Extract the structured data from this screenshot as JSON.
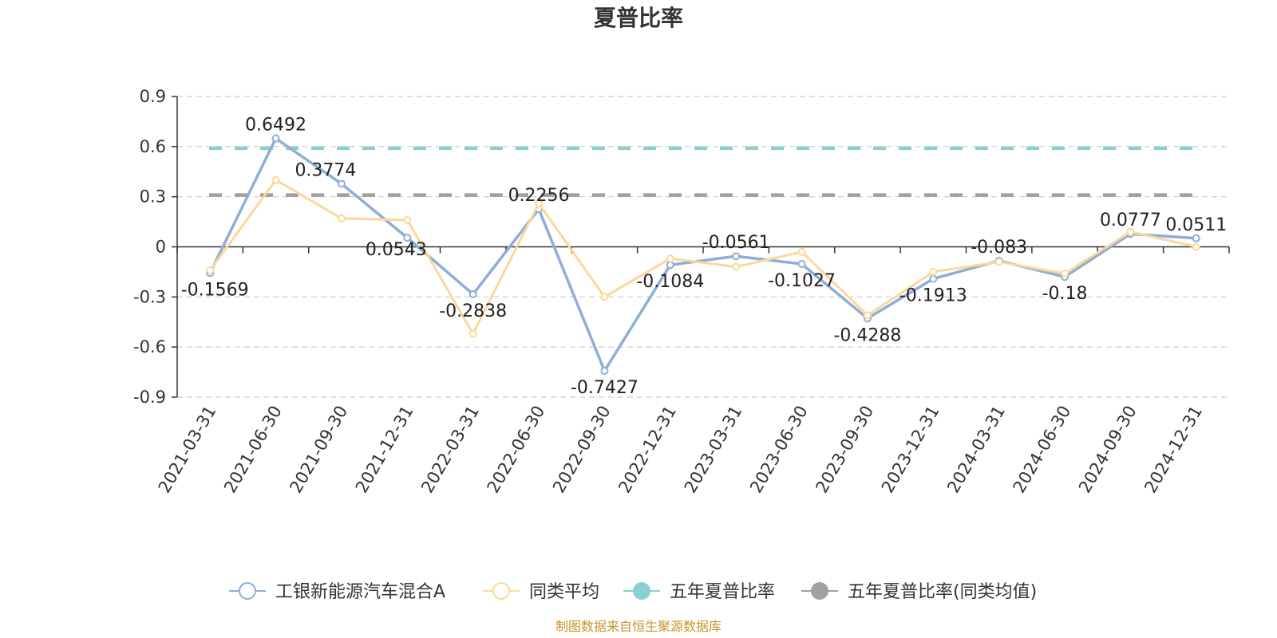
{
  "chart_data": {
    "type": "line",
    "title": "夏普比率",
    "categories": [
      "2021-03-31",
      "2021-06-30",
      "2021-09-30",
      "2021-12-31",
      "2022-03-31",
      "2022-06-30",
      "2022-09-30",
      "2022-12-31",
      "2023-03-31",
      "2023-06-30",
      "2023-09-30",
      "2023-12-31",
      "2024-03-31",
      "2024-06-30",
      "2024-09-30",
      "2024-12-31"
    ],
    "ylim": [
      -0.9,
      0.9
    ],
    "yticks": [
      0.9,
      0.6,
      0.3,
      0,
      -0.3,
      -0.6,
      -0.9
    ],
    "ytick_labels": [
      "0.9",
      "0.6",
      "0.3",
      "0",
      "-0.3",
      "-0.6",
      "-0.9"
    ],
    "grid": true,
    "legend_position": "bottom",
    "series": [
      {
        "name": "工银新能源汽车混合A",
        "color": "#8eaed8",
        "marker": "hollow-circle",
        "values": [
          -0.1569,
          0.6492,
          0.3774,
          0.0543,
          -0.2838,
          0.2256,
          -0.7427,
          -0.1084,
          -0.0561,
          -0.1027,
          -0.4288,
          -0.1913,
          -0.083,
          -0.18,
          0.0777,
          0.0511
        ],
        "labels": [
          "-0.1569",
          "0.6492",
          "0.3774",
          "0.0543",
          "-0.2838",
          "0.2256",
          "-0.7427",
          "-0.1084",
          "-0.0561",
          "-0.1027",
          "-0.4288",
          "-0.1913",
          "-0.083",
          "-0.18",
          "0.0777",
          "0.0511"
        ]
      },
      {
        "name": "同类平均",
        "color": "#fcd89a",
        "marker": "hollow-circle",
        "values": [
          -0.14,
          0.4,
          0.17,
          0.16,
          -0.52,
          0.26,
          -0.3,
          -0.07,
          -0.12,
          -0.03,
          -0.41,
          -0.15,
          -0.09,
          -0.16,
          0.09,
          0.0
        ]
      },
      {
        "name": "五年夏普比率",
        "color": "#88d0d2",
        "marker": "filled-circle",
        "style": "dashed",
        "constant": 0.59
      },
      {
        "name": "五年夏普比率(同类均值)",
        "color": "#a0a0a0",
        "marker": "filled-circle",
        "style": "dashed",
        "constant": 0.31
      }
    ],
    "source": "制图数据来自恒生聚源数据库"
  }
}
